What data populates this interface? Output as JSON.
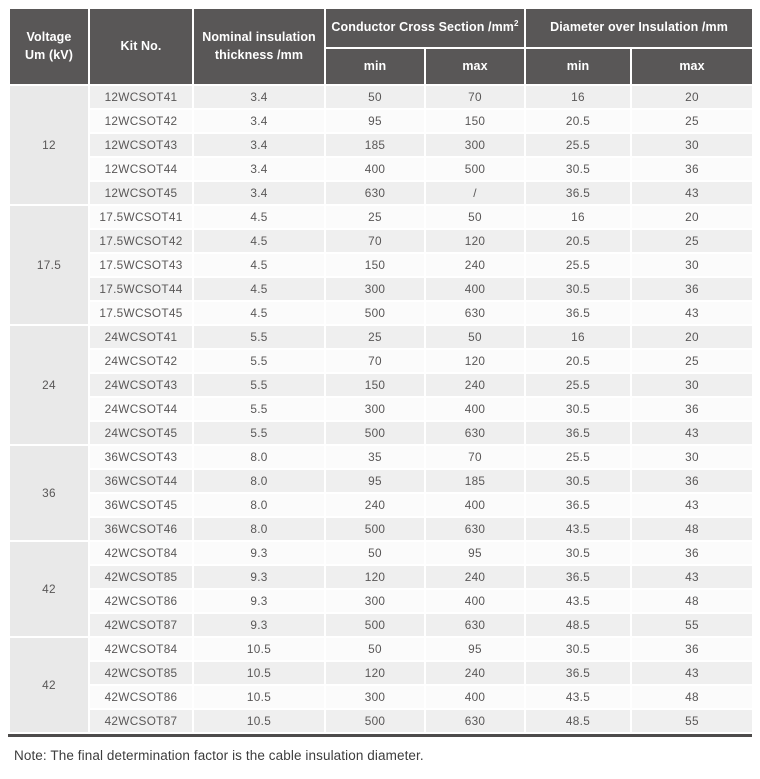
{
  "table": {
    "header": {
      "voltage_line1": "Voltage",
      "voltage_line2": "Um (kV)",
      "kit": "Kit No.",
      "nominal_line1": "Nominal insulation",
      "nominal_line2": "thickness /mm",
      "conductor_group": "Conductor Cross Section /mm",
      "conductor_sup": "2",
      "diameter_group": "Diameter over Insulation /mm",
      "sub_min": "min",
      "sub_max": "max"
    },
    "columns": [
      "Kit No.",
      "Nominal insulation thickness /mm",
      "Conductor Cross Section min",
      "Conductor Cross Section max",
      "Diameter over Insulation min",
      "Diameter over Insulation max"
    ],
    "groups": [
      {
        "voltage": "12",
        "rows": [
          [
            "12WCSOT41",
            "3.4",
            "50",
            "70",
            "16",
            "20"
          ],
          [
            "12WCSOT42",
            "3.4",
            "95",
            "150",
            "20.5",
            "25"
          ],
          [
            "12WCSOT43",
            "3.4",
            "185",
            "300",
            "25.5",
            "30"
          ],
          [
            "12WCSOT44",
            "3.4",
            "400",
            "500",
            "30.5",
            "36"
          ],
          [
            "12WCSOT45",
            "3.4",
            "630",
            "/",
            "36.5",
            "43"
          ]
        ]
      },
      {
        "voltage": "17.5",
        "rows": [
          [
            "17.5WCSOT41",
            "4.5",
            "25",
            "50",
            "16",
            "20"
          ],
          [
            "17.5WCSOT42",
            "4.5",
            "70",
            "120",
            "20.5",
            "25"
          ],
          [
            "17.5WCSOT43",
            "4.5",
            "150",
            "240",
            "25.5",
            "30"
          ],
          [
            "17.5WCSOT44",
            "4.5",
            "300",
            "400",
            "30.5",
            "36"
          ],
          [
            "17.5WCSOT45",
            "4.5",
            "500",
            "630",
            "36.5",
            "43"
          ]
        ]
      },
      {
        "voltage": "24",
        "rows": [
          [
            "24WCSOT41",
            "5.5",
            "25",
            "50",
            "16",
            "20"
          ],
          [
            "24WCSOT42",
            "5.5",
            "70",
            "120",
            "20.5",
            "25"
          ],
          [
            "24WCSOT43",
            "5.5",
            "150",
            "240",
            "25.5",
            "30"
          ],
          [
            "24WCSOT44",
            "5.5",
            "300",
            "400",
            "30.5",
            "36"
          ],
          [
            "24WCSOT45",
            "5.5",
            "500",
            "630",
            "36.5",
            "43"
          ]
        ]
      },
      {
        "voltage": "36",
        "rows": [
          [
            "36WCSOT43",
            "8.0",
            "35",
            "70",
            "25.5",
            "30"
          ],
          [
            "36WCSOT44",
            "8.0",
            "95",
            "185",
            "30.5",
            "36"
          ],
          [
            "36WCSOT45",
            "8.0",
            "240",
            "400",
            "36.5",
            "43"
          ],
          [
            "36WCSOT46",
            "8.0",
            "500",
            "630",
            "43.5",
            "48"
          ]
        ]
      },
      {
        "voltage": "42",
        "rows": [
          [
            "42WCSOT84",
            "9.3",
            "50",
            "95",
            "30.5",
            "36"
          ],
          [
            "42WCSOT85",
            "9.3",
            "120",
            "240",
            "36.5",
            "43"
          ],
          [
            "42WCSOT86",
            "9.3",
            "300",
            "400",
            "43.5",
            "48"
          ],
          [
            "42WCSOT87",
            "9.3",
            "500",
            "630",
            "48.5",
            "55"
          ]
        ]
      },
      {
        "voltage": "42",
        "rows": [
          [
            "42WCSOT84",
            "10.5",
            "50",
            "95",
            "30.5",
            "36"
          ],
          [
            "42WCSOT85",
            "10.5",
            "120",
            "240",
            "36.5",
            "43"
          ],
          [
            "42WCSOT86",
            "10.5",
            "300",
            "400",
            "43.5",
            "48"
          ],
          [
            "42WCSOT87",
            "10.5",
            "500",
            "630",
            "48.5",
            "55"
          ]
        ]
      }
    ]
  },
  "page": {
    "note": "Note: The final determination factor is the cable insulation diameter."
  },
  "colors": {
    "header_bg": "#595757",
    "header_text": "#ffffff",
    "row_odd": "#efefef",
    "row_even": "#fbfbfb",
    "voltage_col_bg": "#e9e9e9",
    "cell_text": "#595757",
    "bottom_border": "#4d4b4b",
    "note_text": "#3d3d3d"
  }
}
